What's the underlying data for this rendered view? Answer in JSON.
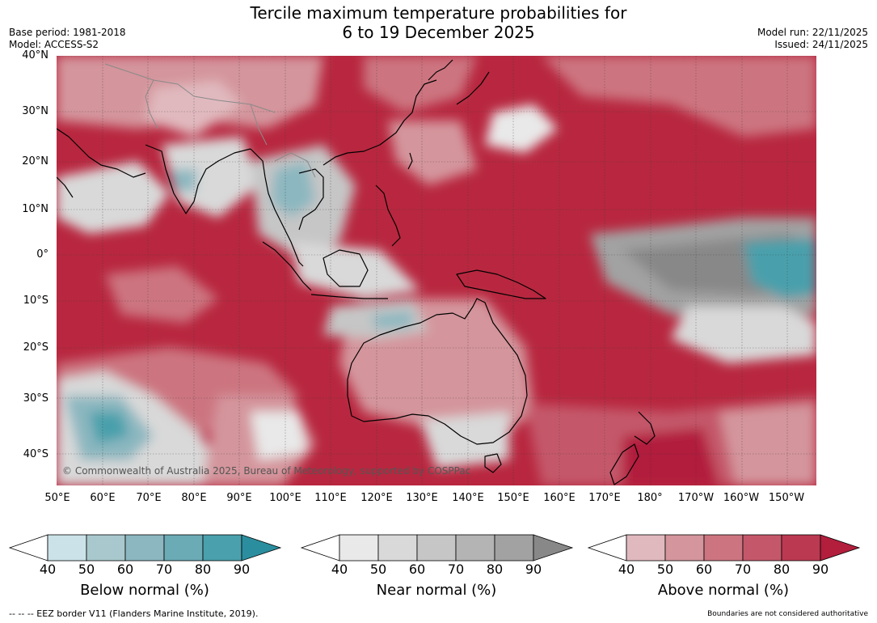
{
  "header": {
    "title_line1": "Tercile maximum temperature probabilities for",
    "title_line2": "6 to 19 December 2025",
    "base_period": "Base period: 1981-2018",
    "model": "Model: ACCESS-S2",
    "model_run": "Model run: 22/11/2025",
    "issued": "Issued: 24/11/2025"
  },
  "map": {
    "lat_labels": [
      "40°N",
      "30°N",
      "20°N",
      "10°N",
      "0°",
      "10°S",
      "20°S",
      "30°S",
      "40°S"
    ],
    "lon_labels": [
      "50°E",
      "60°E",
      "70°E",
      "80°E",
      "90°E",
      "100°E",
      "110°E",
      "120°E",
      "130°E",
      "140°E",
      "150°E",
      "160°E",
      "170°E",
      "180°",
      "170°W",
      "160°W",
      "150°W"
    ],
    "copyright": "© Commonwealth of Australia 2025, Bureau of Meteorology, supported by COSPPac",
    "colors": {
      "above": [
        "#e0b9be",
        "#d4959c",
        "#cc7580",
        "#c4586a",
        "#bb3a51",
        "#b21e3c"
      ],
      "near": [
        "#e9e9e9",
        "#d9d9d9",
        "#c6c6c6",
        "#b4b4b4",
        "#a2a2a2",
        "#888888"
      ],
      "below": [
        "#cbe3e8",
        "#a9c8cd",
        "#8cb7c0",
        "#6babb5",
        "#4aa0ac",
        "#2b8e9e"
      ]
    }
  },
  "legend": {
    "ticks": [
      "40",
      "50",
      "60",
      "70",
      "80",
      "90"
    ],
    "below_title": "Below normal (%)",
    "near_title": "Near normal (%)",
    "above_title": "Above normal (%)"
  },
  "footer": {
    "eez": "--  --  -- EEZ border V11 (Flanders Marine Institute, 2019).",
    "boundaries": "Boundaries are not considered authoritative"
  }
}
